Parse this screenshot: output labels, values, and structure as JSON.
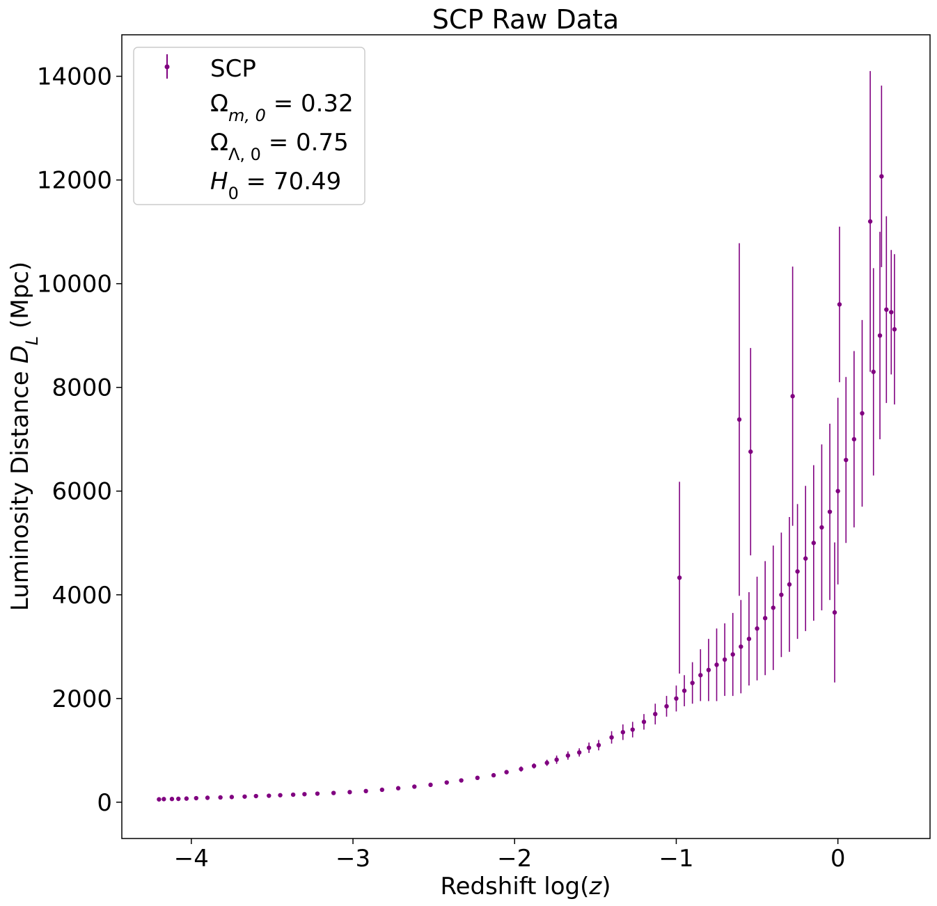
{
  "chart_data": {
    "type": "scatter",
    "title": "SCP Raw Data",
    "xlabel": {
      "pre": "Redshift log(",
      "var": "z",
      "post": ")"
    },
    "ylabel": {
      "pre": "Luminosity Distance ",
      "var": "D",
      "sub": "L",
      "post": " (Mpc)"
    },
    "xlim": [
      -4.43,
      0.57
    ],
    "ylim": [
      -700,
      14800
    ],
    "xticks": [
      -4,
      -3,
      -2,
      -1,
      0
    ],
    "xtick_labels": [
      "−4",
      "−3",
      "−2",
      "−1",
      "0"
    ],
    "yticks": [
      0,
      2000,
      4000,
      6000,
      8000,
      10000,
      12000,
      14000
    ],
    "ytick_labels": [
      "0",
      "2000",
      "4000",
      "6000",
      "8000",
      "10000",
      "12000",
      "14000"
    ],
    "grid": false,
    "legend_position": "upper-left",
    "color": "#800080",
    "legend": {
      "series_label": "SCP",
      "omega_m": {
        "sym": "Ω",
        "sub": "m, 0",
        "text": " =  0.32"
      },
      "omega_l": {
        "sym": "Ω",
        "sub": "Λ, 0",
        "text": " =  0.75"
      },
      "h0": {
        "sym": "H",
        "sub": "0",
        "text": " =  70.49"
      }
    },
    "series": [
      {
        "name": "SCP",
        "points": [
          [
            -4.2,
            55,
            20
          ],
          [
            -4.17,
            60,
            20
          ],
          [
            -4.12,
            62,
            20
          ],
          [
            -4.08,
            65,
            20
          ],
          [
            -4.03,
            70,
            20
          ],
          [
            -3.97,
            78,
            20
          ],
          [
            -3.9,
            85,
            20
          ],
          [
            -3.82,
            92,
            20
          ],
          [
            -3.75,
            100,
            20
          ],
          [
            -3.67,
            108,
            20
          ],
          [
            -3.6,
            118,
            20
          ],
          [
            -3.52,
            125,
            20
          ],
          [
            -3.45,
            135,
            20
          ],
          [
            -3.37,
            145,
            20
          ],
          [
            -3.3,
            155,
            20
          ],
          [
            -3.22,
            165,
            20
          ],
          [
            -3.12,
            178,
            20
          ],
          [
            -3.02,
            195,
            20
          ],
          [
            -2.92,
            215,
            20
          ],
          [
            -2.82,
            240,
            25
          ],
          [
            -2.72,
            270,
            25
          ],
          [
            -2.62,
            300,
            25
          ],
          [
            -2.52,
            335,
            25
          ],
          [
            -2.42,
            380,
            30
          ],
          [
            -2.33,
            420,
            30
          ],
          [
            -2.23,
            470,
            30
          ],
          [
            -2.13,
            520,
            35
          ],
          [
            -2.05,
            580,
            35
          ],
          [
            -1.96,
            640,
            50
          ],
          [
            -1.88,
            700,
            50
          ],
          [
            -1.8,
            760,
            60
          ],
          [
            -1.74,
            820,
            80
          ],
          [
            -1.67,
            900,
            80
          ],
          [
            -1.6,
            960,
            80
          ],
          [
            -1.54,
            1050,
            100
          ],
          [
            -1.48,
            1100,
            100
          ],
          [
            -1.4,
            1250,
            120
          ],
          [
            -1.33,
            1350,
            150
          ],
          [
            -1.27,
            1400,
            150
          ],
          [
            -1.2,
            1550,
            150
          ],
          [
            -1.13,
            1700,
            200
          ],
          [
            -1.06,
            1850,
            200
          ],
          [
            -1.0,
            2000,
            250
          ],
          [
            -0.98,
            4330,
            1850
          ],
          [
            -0.95,
            2150,
            300
          ],
          [
            -0.9,
            2300,
            400
          ],
          [
            -0.85,
            2450,
            500
          ],
          [
            -0.8,
            2550,
            600
          ],
          [
            -0.75,
            2650,
            700
          ],
          [
            -0.7,
            2750,
            700
          ],
          [
            -0.65,
            2850,
            800
          ],
          [
            -0.61,
            7380,
            3400
          ],
          [
            -0.6,
            3000,
            900
          ],
          [
            -0.55,
            3150,
            900
          ],
          [
            -0.54,
            6760,
            2000
          ],
          [
            -0.5,
            3350,
            1000
          ],
          [
            -0.45,
            3550,
            1100
          ],
          [
            -0.4,
            3750,
            1200
          ],
          [
            -0.35,
            4000,
            1200
          ],
          [
            -0.3,
            4200,
            1300
          ],
          [
            -0.28,
            7830,
            2500
          ],
          [
            -0.25,
            4450,
            1300
          ],
          [
            -0.2,
            4700,
            1400
          ],
          [
            -0.15,
            5000,
            1500
          ],
          [
            -0.1,
            5300,
            1600
          ],
          [
            -0.05,
            5600,
            1700
          ],
          [
            -0.02,
            3660,
            1350
          ],
          [
            0.0,
            6000,
            1800
          ],
          [
            0.01,
            9600,
            1500
          ],
          [
            0.05,
            6600,
            1600
          ],
          [
            0.1,
            7000,
            1700
          ],
          [
            0.15,
            7500,
            1800
          ],
          [
            0.2,
            11200,
            2900
          ],
          [
            0.22,
            8300,
            2000
          ],
          [
            0.26,
            9000,
            2000
          ],
          [
            0.27,
            12070,
            1750
          ],
          [
            0.3,
            9500,
            1800
          ],
          [
            0.33,
            9450,
            1200
          ],
          [
            0.35,
            9120,
            1450
          ]
        ]
      }
    ]
  }
}
